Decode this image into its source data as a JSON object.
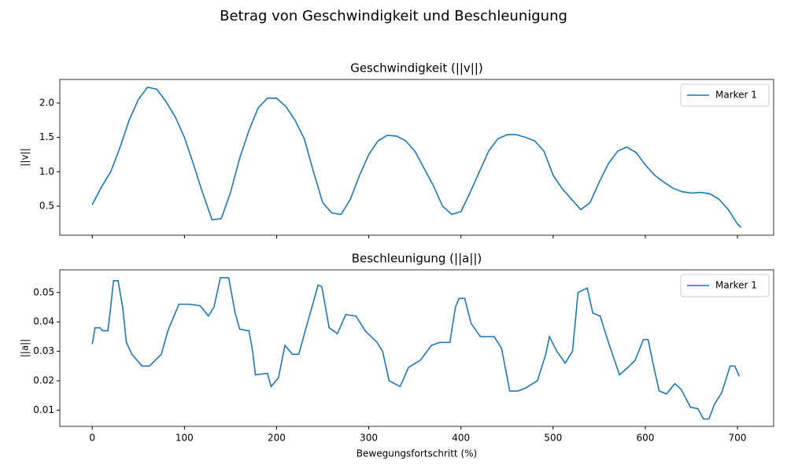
{
  "title": "Betrag von Geschwindigkeit und Beschleunigung",
  "chart_data": [
    {
      "type": "line",
      "title": "Geschwindigkeit (||v||)",
      "ylabel": "||v||",
      "x": [
        0,
        10,
        20,
        30,
        40,
        50,
        60,
        70,
        80,
        90,
        100,
        110,
        120,
        130,
        140,
        150,
        160,
        170,
        180,
        190,
        200,
        210,
        220,
        230,
        240,
        250,
        260,
        270,
        280,
        290,
        300,
        310,
        320,
        330,
        340,
        350,
        360,
        370,
        380,
        390,
        400,
        410,
        420,
        430,
        440,
        450,
        460,
        470,
        480,
        490,
        500,
        510,
        520,
        530,
        540,
        550,
        560,
        570,
        580,
        590,
        600,
        610,
        620,
        630,
        640,
        650,
        660,
        670,
        680,
        690,
        700,
        704
      ],
      "series": [
        {
          "name": "Marker 1",
          "color": "#1f77b4",
          "values": [
            0.52,
            0.78,
            1.0,
            1.35,
            1.75,
            2.05,
            2.23,
            2.2,
            2.02,
            1.8,
            1.5,
            1.1,
            0.68,
            0.3,
            0.32,
            0.7,
            1.2,
            1.6,
            1.93,
            2.07,
            2.07,
            1.95,
            1.75,
            1.48,
            1.0,
            0.55,
            0.4,
            0.38,
            0.6,
            0.95,
            1.25,
            1.45,
            1.53,
            1.52,
            1.45,
            1.3,
            1.05,
            0.8,
            0.5,
            0.38,
            0.42,
            0.7,
            1.0,
            1.3,
            1.48,
            1.54,
            1.54,
            1.5,
            1.45,
            1.3,
            0.95,
            0.75,
            0.6,
            0.45,
            0.55,
            0.85,
            1.12,
            1.3,
            1.36,
            1.28,
            1.1,
            0.95,
            0.85,
            0.76,
            0.71,
            0.69,
            0.7,
            0.68,
            0.6,
            0.45,
            0.24,
            0.19
          ]
        }
      ],
      "xlim": [
        -35.2,
        739.2
      ],
      "ylim": [
        0.077,
        2.343
      ],
      "xticks": [
        0,
        100,
        200,
        300,
        400,
        500,
        600,
        700
      ],
      "yticks": [
        0.5,
        {
          "value": 1,
          "label": "1.0"
        },
        1.5,
        {
          "value": 2,
          "label": "2.0"
        }
      ],
      "legend": "upper right"
    },
    {
      "type": "line",
      "title": "Beschleunigung (||a||)",
      "ylabel": "||a||",
      "xlabel": "Bewegungsfortschritt (%)",
      "x": [
        0,
        3,
        8.5,
        11,
        17,
        20,
        23,
        28,
        33,
        37,
        43,
        54,
        62,
        75,
        82,
        94,
        105,
        117,
        126,
        132,
        139,
        148,
        155,
        160,
        170,
        174,
        177,
        190,
        194,
        202,
        209,
        217,
        224,
        232,
        241,
        245,
        249,
        257,
        266,
        275,
        286,
        296,
        309,
        315,
        322,
        334,
        343,
        356,
        368,
        377,
        388,
        394,
        398,
        404,
        411,
        421,
        436,
        444,
        453,
        462,
        470,
        483,
        492,
        496,
        504,
        513,
        521,
        527,
        537,
        543,
        551,
        560,
        572,
        581,
        589,
        598,
        603,
        609,
        615,
        623,
        632,
        639,
        649,
        657,
        663,
        669,
        675,
        683,
        692,
        697,
        702
      ],
      "series": [
        {
          "name": "Marker 1",
          "color": "#1f77b4",
          "values": [
            0.0325,
            0.038,
            0.038,
            0.037,
            0.037,
            0.045,
            0.054,
            0.054,
            0.045,
            0.033,
            0.029,
            0.025,
            0.025,
            0.029,
            0.037,
            0.046,
            0.046,
            0.0455,
            0.042,
            0.045,
            0.055,
            0.055,
            0.043,
            0.0375,
            0.037,
            0.03,
            0.022,
            0.0225,
            0.018,
            0.021,
            0.032,
            0.029,
            0.029,
            0.038,
            0.048,
            0.0525,
            0.052,
            0.038,
            0.036,
            0.0425,
            0.042,
            0.037,
            0.033,
            0.03,
            0.02,
            0.018,
            0.0245,
            0.027,
            0.032,
            0.033,
            0.033,
            0.045,
            0.048,
            0.048,
            0.0395,
            0.035,
            0.035,
            0.031,
            0.0165,
            0.0165,
            0.0175,
            0.02,
            0.029,
            0.035,
            0.03,
            0.026,
            0.03,
            0.05,
            0.0515,
            0.043,
            0.042,
            0.033,
            0.022,
            0.0245,
            0.027,
            0.034,
            0.034,
            0.025,
            0.0165,
            0.0155,
            0.019,
            0.017,
            0.011,
            0.0105,
            0.007,
            0.007,
            0.012,
            0.016,
            0.025,
            0.025,
            0.0215
          ]
        }
      ],
      "xlim": [
        -35.2,
        739.2
      ],
      "ylim": [
        0.00448,
        0.0577
      ],
      "xticks": [
        0,
        100,
        200,
        300,
        400,
        500,
        600,
        700
      ],
      "yticks": [
        0.01,
        0.02,
        0.03,
        0.04,
        0.05
      ],
      "legend": "upper right"
    }
  ]
}
